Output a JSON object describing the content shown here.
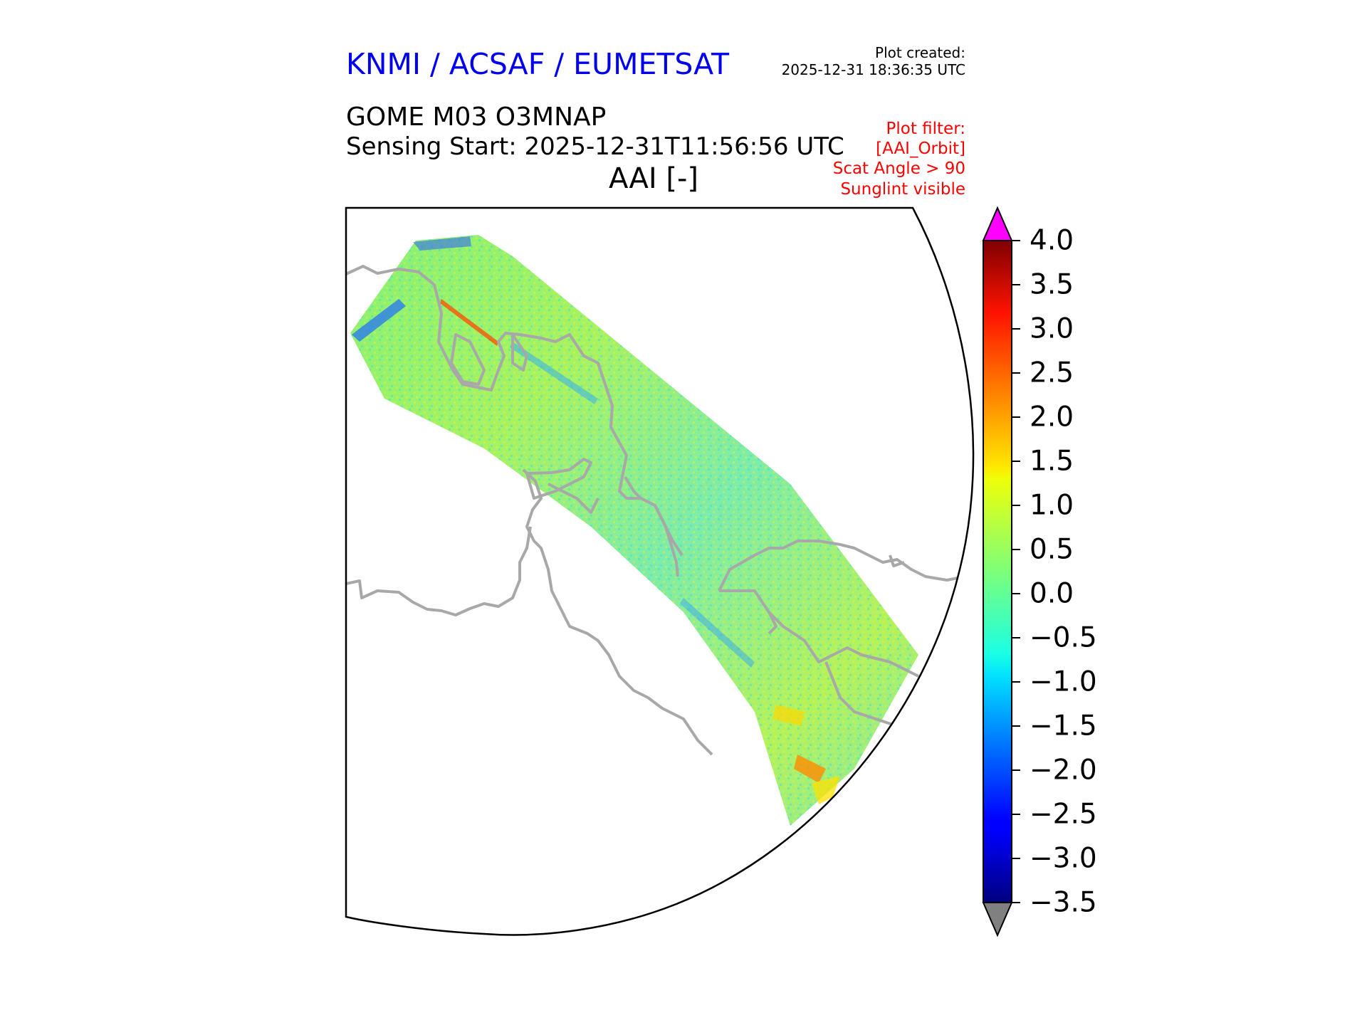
{
  "header": {
    "organization": "KNMI / ACSAF / EUMETSAT",
    "plot_created_label": "Plot created:",
    "plot_created_time": "2025-12-31 18:36:35 UTC"
  },
  "product": {
    "title": "GOME M03 O3MNAP",
    "sensing_start": "Sensing Start: 2025-12-31T11:56:56 UTC"
  },
  "map": {
    "title": "AAI [-]",
    "variable": "AAI"
  },
  "plot_filter": [
    "Plot filter:",
    "[AAI_Orbit]",
    "Scat Angle > 90",
    "Sunglint visible"
  ],
  "colorbar": {
    "min": -3.5,
    "max": 4.0,
    "ticks": [
      "4.0",
      "3.5",
      "3.0",
      "2.5",
      "2.0",
      "1.5",
      "1.0",
      "0.5",
      "0.0",
      "−0.5",
      "−1.0",
      "−1.5",
      "−2.0",
      "−2.5",
      "−3.0",
      "−3.5"
    ],
    "over_color": "#ff00ff",
    "under_color": "#808080",
    "colormap": "jet"
  },
  "colors": {
    "header": "#0000ee",
    "filter": "#ff0000",
    "coastline": "#a8a8a8"
  }
}
